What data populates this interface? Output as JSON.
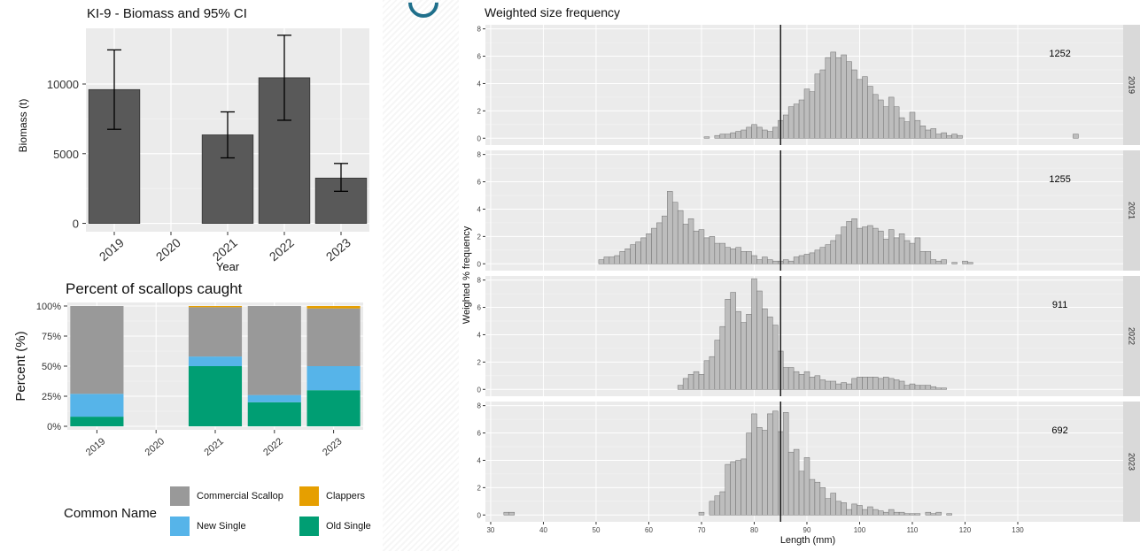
{
  "chart_data": [
    {
      "type": "bar",
      "title": "KI-9  - Biomass and 95% CI",
      "xlabel": "Year",
      "ylabel": "Biomass (t)",
      "categories": [
        "2019",
        "2020",
        "2021",
        "2022",
        "2023"
      ],
      "values": [
        9600,
        null,
        6350,
        10450,
        3250
      ],
      "ci_low": [
        6750,
        null,
        4700,
        7400,
        2300
      ],
      "ci_high": [
        12450,
        null,
        8000,
        13500,
        4300
      ],
      "ylim": [
        -600,
        14000
      ],
      "yticks": [
        0,
        5000,
        10000
      ],
      "grid": true,
      "bar_color": "#595959"
    },
    {
      "type": "bar",
      "stacked": true,
      "title": "Percent of scallops caught",
      "xlabel": "",
      "ylabel": "Percent (%)",
      "categories": [
        "2019",
        "2020",
        "2021",
        "2022",
        "2023"
      ],
      "ytick_labels": [
        "0%",
        "25%",
        "50%",
        "75%",
        "100%"
      ],
      "ylim": [
        0,
        100
      ],
      "grid": true,
      "legend_title": "Common Name",
      "legend_position": "bottom",
      "series": [
        {
          "name": "Old Single",
          "color": "#009E73",
          "values": [
            8,
            null,
            50,
            20,
            30
          ]
        },
        {
          "name": "New Single",
          "color": "#56B4E9",
          "values": [
            19,
            null,
            8,
            6,
            20
          ]
        },
        {
          "name": "Commercial Scallop",
          "color": "#999999",
          "values": [
            73,
            null,
            41,
            74,
            48
          ]
        },
        {
          "name": "Clappers",
          "color": "#E69F00",
          "values": [
            0,
            null,
            1,
            0,
            2
          ]
        }
      ],
      "legend_items": [
        "Commercial Scallop",
        "Clappers",
        "New Single",
        "Old Single"
      ]
    },
    {
      "type": "bar",
      "subtype": "faceted-histogram",
      "title": "Weighted size frequency",
      "xlabel": "Length (mm)",
      "ylabel": "Weighted % frequency",
      "xlim": [
        29,
        150
      ],
      "xticks": [
        30,
        40,
        50,
        60,
        70,
        80,
        90,
        100,
        110,
        120,
        130
      ],
      "ylim": [
        -0.5,
        8.3
      ],
      "yticks": [
        0,
        2,
        4,
        6,
        8
      ],
      "reference_line_x": 85,
      "bin_width": 1,
      "bar_color": "#bdbdbd",
      "panels": [
        {
          "strip": "2019",
          "count": "1252",
          "bins": [
            [
              71,
              0.1
            ],
            [
              73,
              0.2
            ],
            [
              74,
              0.3
            ],
            [
              75,
              0.3
            ],
            [
              76,
              0.4
            ],
            [
              77,
              0.5
            ],
            [
              78,
              0.6
            ],
            [
              79,
              0.8
            ],
            [
              80,
              1.0
            ],
            [
              81,
              0.8
            ],
            [
              82,
              0.6
            ],
            [
              83,
              0.5
            ],
            [
              84,
              0.8
            ],
            [
              85,
              1.3
            ],
            [
              86,
              1.7
            ],
            [
              87,
              2.3
            ],
            [
              88,
              2.5
            ],
            [
              89,
              2.8
            ],
            [
              90,
              3.6
            ],
            [
              91,
              3.4
            ],
            [
              92,
              4.7
            ],
            [
              93,
              5.0
            ],
            [
              94,
              5.9
            ],
            [
              95,
              6.3
            ],
            [
              96,
              5.9
            ],
            [
              97,
              6.1
            ],
            [
              98,
              5.6
            ],
            [
              99,
              5.0
            ],
            [
              100,
              4.3
            ],
            [
              101,
              4.5
            ],
            [
              102,
              3.8
            ],
            [
              103,
              3.2
            ],
            [
              104,
              2.8
            ],
            [
              105,
              2.3
            ],
            [
              106,
              3.0
            ],
            [
              107,
              2.3
            ],
            [
              108,
              1.5
            ],
            [
              109,
              1.2
            ],
            [
              110,
              1.9
            ],
            [
              111,
              1.3
            ],
            [
              112,
              0.9
            ],
            [
              113,
              0.6
            ],
            [
              114,
              0.7
            ],
            [
              115,
              0.3
            ],
            [
              116,
              0.4
            ],
            [
              117,
              0.2
            ],
            [
              118,
              0.3
            ],
            [
              119,
              0.2
            ],
            [
              141,
              0.3
            ]
          ]
        },
        {
          "strip": "2021",
          "count": "1255",
          "bins": [
            [
              51,
              0.3
            ],
            [
              52,
              0.5
            ],
            [
              53,
              0.5
            ],
            [
              54,
              0.6
            ],
            [
              55,
              0.9
            ],
            [
              56,
              1.1
            ],
            [
              57,
              1.4
            ],
            [
              58,
              1.6
            ],
            [
              59,
              1.9
            ],
            [
              60,
              2.2
            ],
            [
              61,
              2.6
            ],
            [
              62,
              3.0
            ],
            [
              63,
              3.5
            ],
            [
              64,
              5.3
            ],
            [
              65,
              4.5
            ],
            [
              66,
              3.9
            ],
            [
              67,
              2.9
            ],
            [
              68,
              3.3
            ],
            [
              69,
              2.4
            ],
            [
              70,
              2.5
            ],
            [
              71,
              1.9
            ],
            [
              72,
              2.0
            ],
            [
              73,
              1.5
            ],
            [
              74,
              1.5
            ],
            [
              75,
              1.2
            ],
            [
              76,
              1.1
            ],
            [
              77,
              1.2
            ],
            [
              78,
              0.9
            ],
            [
              79,
              0.9
            ],
            [
              80,
              0.6
            ],
            [
              81,
              0.3
            ],
            [
              82,
              0.5
            ],
            [
              83,
              0.3
            ],
            [
              84,
              0.2
            ],
            [
              85,
              0.2
            ],
            [
              86,
              0.3
            ],
            [
              87,
              0.2
            ],
            [
              88,
              0.5
            ],
            [
              89,
              0.6
            ],
            [
              90,
              0.7
            ],
            [
              91,
              0.8
            ],
            [
              92,
              1.0
            ],
            [
              93,
              1.2
            ],
            [
              94,
              1.4
            ],
            [
              95,
              1.7
            ],
            [
              96,
              2.1
            ],
            [
              97,
              2.7
            ],
            [
              98,
              3.1
            ],
            [
              99,
              3.3
            ],
            [
              100,
              2.6
            ],
            [
              101,
              2.7
            ],
            [
              102,
              2.8
            ],
            [
              103,
              2.6
            ],
            [
              104,
              2.4
            ],
            [
              105,
              1.8
            ],
            [
              106,
              2.5
            ],
            [
              107,
              1.9
            ],
            [
              108,
              2.2
            ],
            [
              109,
              1.7
            ],
            [
              110,
              1.5
            ],
            [
              111,
              1.9
            ],
            [
              112,
              0.9
            ],
            [
              113,
              0.9
            ],
            [
              114,
              0.3
            ],
            [
              115,
              0.2
            ],
            [
              116,
              0.3
            ],
            [
              118,
              0.1
            ],
            [
              120,
              0.2
            ],
            [
              121,
              0.1
            ]
          ]
        },
        {
          "strip": "2022",
          "count": "911",
          "bins": [
            [
              66,
              0.3
            ],
            [
              67,
              0.8
            ],
            [
              68,
              1.1
            ],
            [
              69,
              1.3
            ],
            [
              70,
              1.1
            ],
            [
              71,
              2.1
            ],
            [
              72,
              2.4
            ],
            [
              73,
              3.6
            ],
            [
              74,
              4.6
            ],
            [
              75,
              6.6
            ],
            [
              76,
              7.1
            ],
            [
              77,
              5.7
            ],
            [
              78,
              4.9
            ],
            [
              79,
              5.5
            ],
            [
              80,
              8.1
            ],
            [
              81,
              7.2
            ],
            [
              82,
              5.9
            ],
            [
              83,
              5.3
            ],
            [
              84,
              4.7
            ],
            [
              85,
              2.8
            ],
            [
              86,
              1.6
            ],
            [
              87,
              1.6
            ],
            [
              88,
              1.3
            ],
            [
              89,
              1.1
            ],
            [
              90,
              1.3
            ],
            [
              91,
              0.9
            ],
            [
              92,
              1.0
            ],
            [
              93,
              0.7
            ],
            [
              94,
              0.6
            ],
            [
              95,
              0.6
            ],
            [
              96,
              0.4
            ],
            [
              97,
              0.5
            ],
            [
              98,
              0.4
            ],
            [
              99,
              0.8
            ],
            [
              100,
              0.9
            ],
            [
              101,
              0.9
            ],
            [
              102,
              0.9
            ],
            [
              103,
              0.9
            ],
            [
              104,
              0.8
            ],
            [
              105,
              0.9
            ],
            [
              106,
              0.8
            ],
            [
              107,
              0.7
            ],
            [
              108,
              0.6
            ],
            [
              109,
              0.3
            ],
            [
              110,
              0.4
            ],
            [
              111,
              0.3
            ],
            [
              112,
              0.3
            ],
            [
              113,
              0.3
            ],
            [
              114,
              0.2
            ],
            [
              115,
              0.1
            ],
            [
              116,
              0.1
            ]
          ]
        },
        {
          "strip": "2023",
          "count": "692",
          "bins": [
            [
              33,
              0.2
            ],
            [
              34,
              0.2
            ],
            [
              70,
              0.2
            ],
            [
              72,
              1.0
            ],
            [
              73,
              1.4
            ],
            [
              74,
              1.7
            ],
            [
              75,
              3.7
            ],
            [
              76,
              3.9
            ],
            [
              77,
              4.0
            ],
            [
              78,
              4.1
            ],
            [
              79,
              6.0
            ],
            [
              80,
              7.4
            ],
            [
              81,
              6.4
            ],
            [
              82,
              6.2
            ],
            [
              83,
              7.4
            ],
            [
              84,
              7.6
            ],
            [
              85,
              6.1
            ],
            [
              86,
              7.5
            ],
            [
              87,
              4.6
            ],
            [
              88,
              4.8
            ],
            [
              89,
              3.2
            ],
            [
              90,
              4.2
            ],
            [
              91,
              2.6
            ],
            [
              92,
              2.4
            ],
            [
              93,
              2.0
            ],
            [
              94,
              1.2
            ],
            [
              95,
              1.6
            ],
            [
              96,
              1.0
            ],
            [
              97,
              0.9
            ],
            [
              98,
              0.4
            ],
            [
              99,
              0.8
            ],
            [
              100,
              0.7
            ],
            [
              101,
              0.4
            ],
            [
              102,
              0.6
            ],
            [
              103,
              0.4
            ],
            [
              104,
              0.3
            ],
            [
              105,
              0.2
            ],
            [
              106,
              0.4
            ],
            [
              107,
              0.2
            ],
            [
              108,
              0.2
            ],
            [
              109,
              0.1
            ],
            [
              110,
              0.1
            ],
            [
              111,
              0.1
            ],
            [
              113,
              0.2
            ],
            [
              114,
              0.1
            ],
            [
              115,
              0.2
            ],
            [
              117,
              0.1
            ]
          ]
        }
      ]
    }
  ]
}
